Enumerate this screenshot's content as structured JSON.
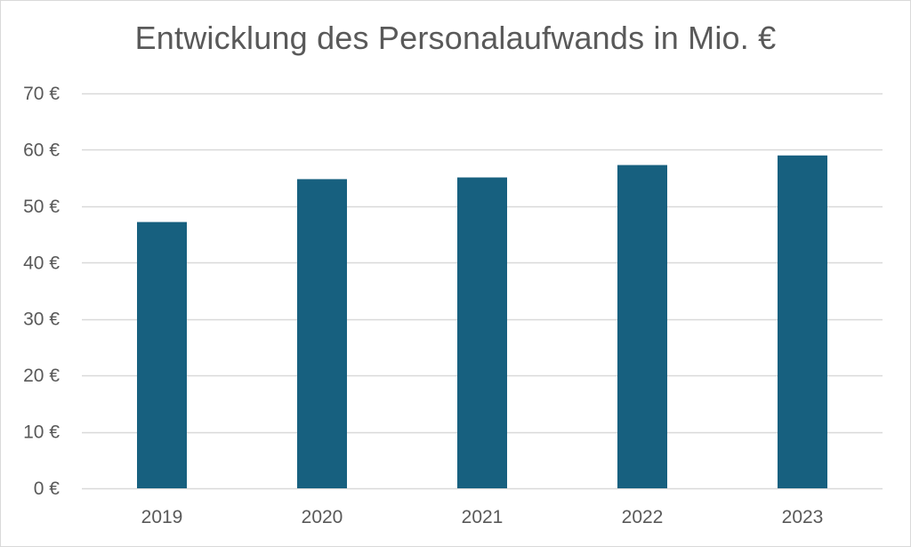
{
  "chart_data": {
    "type": "bar",
    "title": "Entwicklung des Personalaufwands in Mio. €",
    "categories": [
      "2019",
      "2020",
      "2021",
      "2022",
      "2023"
    ],
    "values": [
      47.2,
      54.8,
      55.1,
      57.3,
      59.0
    ],
    "xlabel": "",
    "ylabel": "",
    "ylim": [
      0,
      70
    ],
    "ytick_step": 10,
    "ytick_suffix": " €",
    "grid": true,
    "legend": "none",
    "colors": {
      "bar": "#17607f",
      "grid": "#d9d9d9",
      "text": "#595959"
    }
  }
}
